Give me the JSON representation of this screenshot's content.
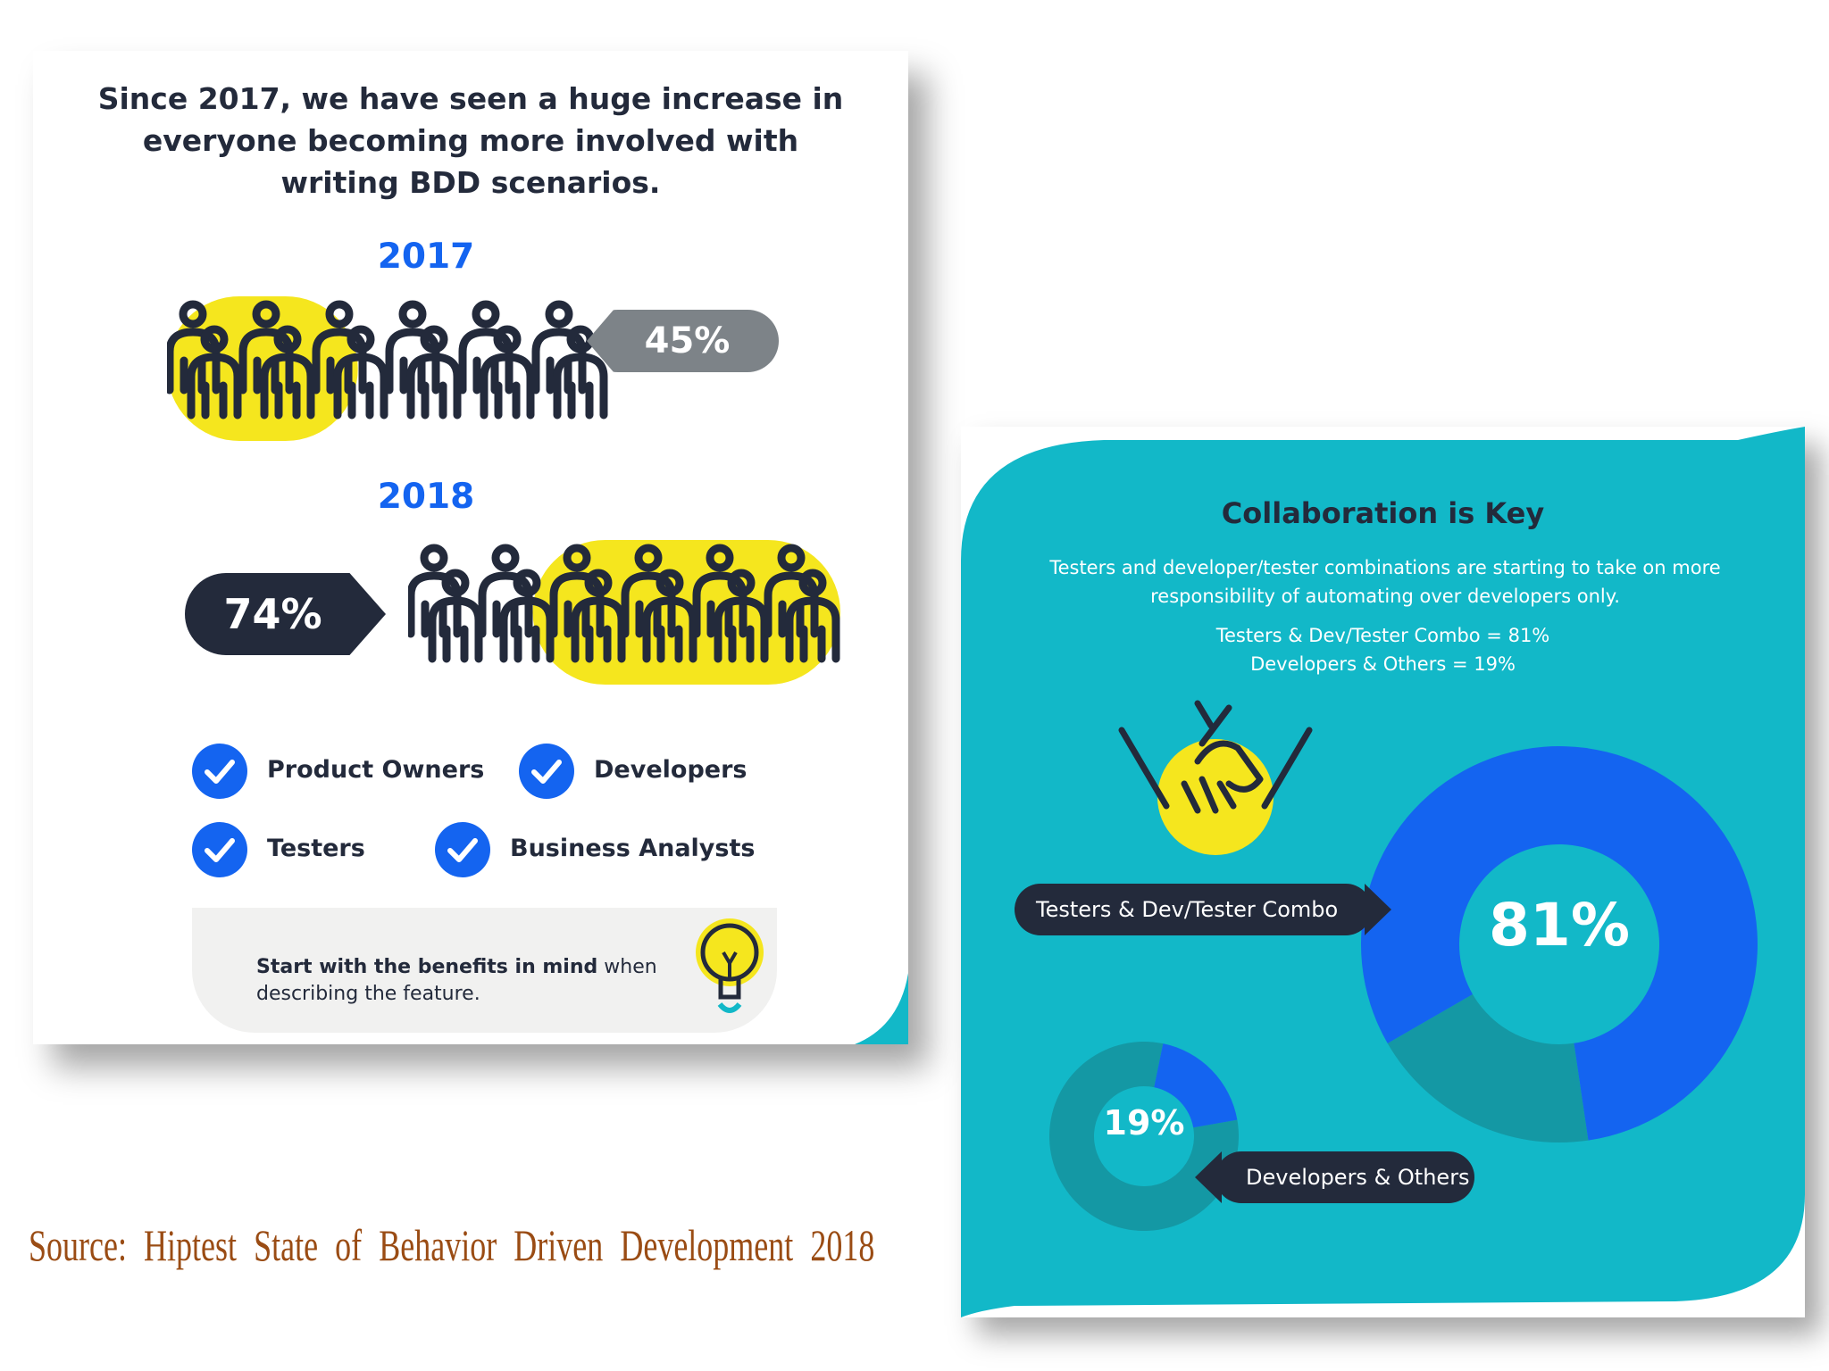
{
  "left_card": {
    "headline": "Since 2017, we have seen a huge increase in everyone becoming more involved with writing BDD scenarios.",
    "year_2017": "2017",
    "year_2018": "2018",
    "pct_2017": "45%",
    "pct_2018": "74%",
    "roles": [
      {
        "label": "Product Owners"
      },
      {
        "label": "Developers"
      },
      {
        "label": "Testers"
      },
      {
        "label": "Business Analysts"
      }
    ],
    "tip_bold": "Start with the benefits in mind",
    "tip_rest": " when describing the feature."
  },
  "right_card": {
    "title": "Collaboration is Key",
    "description": "Testers and developer/tester combinations are starting to take on more responsibility of automating over developers only.",
    "stat_line_1": "Testers & Dev/Tester Combo = 81%",
    "stat_line_2": "Developers & Others = 19%",
    "callout_big": "Testers & Dev/Tester Combo",
    "callout_small": "Developers & Others",
    "big_label": "81%",
    "small_label": "19%"
  },
  "source": "Source: Hiptest State of Behavior Driven Development 2018",
  "colors": {
    "navy": "#232a3b",
    "blue": "#1464f0",
    "yellow": "#f5e61e",
    "teal": "#12b8c8",
    "dark_teal": "#1498a4",
    "grey": "#7d8388"
  },
  "chart_data": [
    {
      "type": "pictogram",
      "title": "Since 2017, we have seen a huge increase in everyone becoming more involved with writing BDD scenarios.",
      "categories": [
        "2017",
        "2018"
      ],
      "values": [
        45,
        74
      ],
      "unit": "%"
    },
    {
      "type": "pie",
      "title": "Collaboration is Key",
      "categories": [
        "Testers & Dev/Tester Combo",
        "Developers & Others"
      ],
      "values": [
        81,
        19
      ],
      "unit": "%"
    }
  ]
}
